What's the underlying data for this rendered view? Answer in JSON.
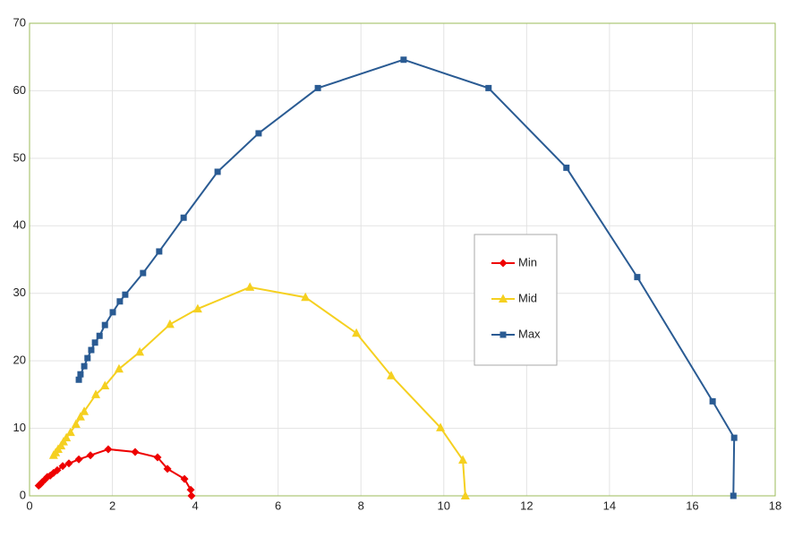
{
  "chart_data": {
    "type": "line",
    "xlim": [
      0,
      18
    ],
    "xticks": [
      0,
      2,
      4,
      6,
      8,
      10,
      12,
      14,
      16,
      18
    ],
    "ylim": [
      0,
      70
    ],
    "yticks": [
      0,
      10,
      20,
      30,
      40,
      50,
      60,
      70
    ],
    "grid": true,
    "legend": "center",
    "series": [
      {
        "name": "Min",
        "color": "#ee0000",
        "marker": "diamond",
        "x": [
          0.22,
          0.26,
          0.3,
          0.37,
          0.43,
          0.5,
          0.58,
          0.67,
          0.8,
          0.95,
          1.19,
          1.47,
          1.9,
          2.55,
          3.09,
          3.33,
          3.74,
          3.89,
          3.91
        ],
        "values": [
          1.5,
          1.7,
          2.0,
          2.4,
          2.8,
          3.0,
          3.4,
          3.8,
          4.4,
          4.8,
          5.4,
          6.0,
          6.9,
          6.5,
          5.7,
          4.0,
          2.5,
          0.9,
          0
        ]
      },
      {
        "name": "Mid",
        "color": "#f5d020",
        "marker": "triangle",
        "x": [
          0.58,
          0.63,
          0.69,
          0.76,
          0.82,
          0.89,
          0.99,
          1.12,
          1.23,
          1.32,
          1.6,
          1.82,
          2.16,
          2.66,
          3.39,
          4.06,
          5.32,
          6.66,
          7.89,
          8.73,
          9.92,
          10.46,
          10.52
        ],
        "values": [
          6.0,
          6.4,
          6.9,
          7.4,
          8.0,
          8.6,
          9.4,
          10.6,
          11.7,
          12.5,
          15.0,
          16.3,
          18.8,
          21.3,
          25.4,
          27.7,
          30.9,
          29.4,
          24.1,
          17.8,
          10.1,
          5.3,
          0
        ]
      },
      {
        "name": "Max",
        "color": "#2a5b93",
        "marker": "square",
        "x": [
          1.19,
          1.23,
          1.32,
          1.4,
          1.49,
          1.58,
          1.69,
          1.82,
          2.01,
          2.18,
          2.31,
          2.74,
          3.13,
          3.72,
          4.54,
          5.53,
          6.96,
          9.03,
          11.08,
          12.96,
          14.67,
          16.49,
          17.01,
          16.99
        ],
        "values": [
          17.2,
          18.0,
          19.2,
          20.4,
          21.6,
          22.7,
          23.7,
          25.3,
          27.2,
          28.8,
          29.8,
          33.0,
          36.2,
          41.2,
          48.0,
          53.7,
          60.4,
          64.6,
          60.4,
          48.6,
          32.4,
          14.0,
          8.6,
          0
        ]
      }
    ]
  }
}
